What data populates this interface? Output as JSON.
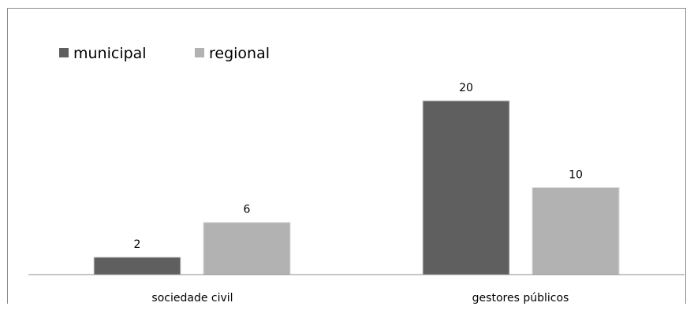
{
  "chart_data": {
    "type": "bar",
    "title": "",
    "xlabel": "",
    "ylabel": "",
    "categories": [
      "sociedade civil",
      "gestores públicos"
    ],
    "series": [
      {
        "name": "municipal",
        "values": [
          2,
          20
        ],
        "color": "#5f5f5f"
      },
      {
        "name": "regional",
        "values": [
          6,
          10
        ],
        "color": "#b2b2b2"
      }
    ],
    "ylim": [
      0,
      24
    ],
    "grid": false,
    "legend_position": "top-left",
    "data_labels": true
  }
}
